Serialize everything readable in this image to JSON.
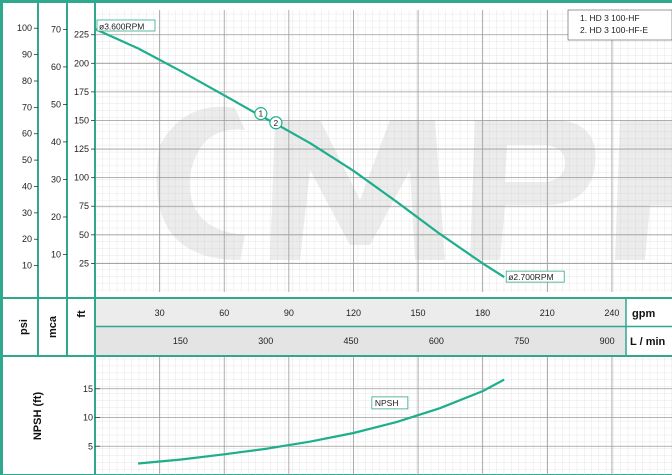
{
  "chart_data": {
    "type": "line",
    "colors": {
      "frame": "#2fa88e",
      "curve": "#1fae8c",
      "grid": "#b9b9b9",
      "band": "#ececec"
    },
    "legend": {
      "placement": "top-right",
      "items": [
        "1. HD 3 100-HF",
        "2. HD 3 100-HF-E"
      ]
    },
    "units": {
      "psi": "psi",
      "mca": "mca",
      "ft": "ft",
      "gpm": "gpm",
      "lmin": "L / min",
      "npsh": "NPSH (ft)"
    },
    "head": {
      "xlim": [
        0,
        260
      ],
      "ylim": [
        0,
        230
      ],
      "yticks_ft": [
        25,
        50,
        75,
        100,
        125,
        150,
        175,
        200,
        225
      ],
      "yticks_mca": [
        10,
        20,
        30,
        40,
        50,
        60,
        70
      ],
      "yticks_psi": [
        10,
        20,
        30,
        40,
        50,
        60,
        70,
        80,
        90,
        100
      ],
      "series": [
        {
          "x": [
            0,
            20,
            40,
            60,
            75,
            85,
            100,
            120,
            140,
            160,
            180,
            190
          ],
          "y": [
            230,
            213,
            193,
            172,
            156,
            146,
            130,
            106,
            79,
            51,
            25,
            13
          ]
        }
      ],
      "labels": [
        {
          "text": "ø3.600RPM",
          "x": 0,
          "y": 230
        },
        {
          "text": "ø2.700RPM",
          "x": 190,
          "y": 13
        }
      ],
      "markers": [
        {
          "text": "1",
          "x": 77,
          "y": 156
        },
        {
          "text": "2",
          "x": 84,
          "y": 148
        }
      ]
    },
    "x_gpm": {
      "ticks": [
        30,
        60,
        90,
        120,
        150,
        180,
        210,
        240
      ]
    },
    "x_lmin": {
      "ticks": [
        150,
        300,
        450,
        600,
        750,
        900
      ]
    },
    "npsh": {
      "xlim": [
        0,
        260
      ],
      "ylim": [
        0,
        20
      ],
      "yticks": [
        5,
        10,
        15
      ],
      "series": [
        {
          "x": [
            20,
            40,
            60,
            80,
            100,
            120,
            140,
            160,
            180,
            190
          ],
          "y": [
            2.0,
            2.7,
            3.6,
            4.6,
            5.8,
            7.3,
            9.2,
            11.6,
            14.6,
            16.6
          ]
        }
      ],
      "label": {
        "text": "NPSH",
        "x": 129,
        "y": 11.5
      }
    }
  }
}
